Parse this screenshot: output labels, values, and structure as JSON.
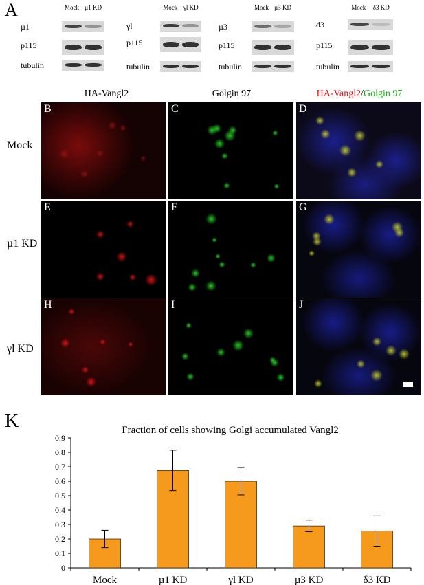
{
  "panel_a": {
    "letter": "A",
    "blots": [
      {
        "heads": [
          "Mock",
          "µ1 KD"
        ],
        "rows": [
          "µ1",
          "p115",
          "tubulin"
        ]
      },
      {
        "heads": [
          "Mock",
          "γl KD"
        ],
        "rows": [
          "γl",
          "p115",
          "tubulin"
        ]
      },
      {
        "heads": [
          "Mock",
          "µ3 KD"
        ],
        "rows": [
          "µ3",
          "p115",
          "tubulin"
        ]
      },
      {
        "heads": [
          "Mock",
          "δ3 KD"
        ],
        "rows": [
          "d3",
          "p115",
          "tubulin"
        ]
      }
    ]
  },
  "micrographs": {
    "columns": [
      "HA-Vangl2",
      "Golgin 97"
    ],
    "merge_title": {
      "red": "HA-Vangl2",
      "sep": "/",
      "green": "Golgin 97"
    },
    "rows": [
      "Mock",
      "µ1 KD",
      "γl KD"
    ],
    "letters": [
      "B",
      "C",
      "D",
      "E",
      "F",
      "G",
      "H",
      "I",
      "J"
    ]
  },
  "panel_k": {
    "letter": "K",
    "chart_data": {
      "type": "bar",
      "title": "Fraction of cells showing Golgi accumulated Vangl2",
      "categories": [
        "Mock",
        "µ1 KD",
        "γl KD",
        "µ3 KD",
        "δ3 KD"
      ],
      "values": [
        0.2,
        0.675,
        0.6,
        0.29,
        0.255
      ],
      "errors": [
        0.06,
        0.14,
        0.095,
        0.04,
        0.105
      ],
      "ylim": [
        0,
        0.9
      ],
      "yticks": [
        "0",
        "0.1",
        "0.2",
        "0.3",
        "0.4",
        "0.5",
        "0.6",
        "0.7",
        "0.8",
        "0.9"
      ],
      "ytick_values": [
        0,
        0.1,
        0.2,
        0.3,
        0.4,
        0.5,
        0.6,
        0.7,
        0.8,
        0.9
      ],
      "bar_color": "#f59a1c"
    }
  }
}
